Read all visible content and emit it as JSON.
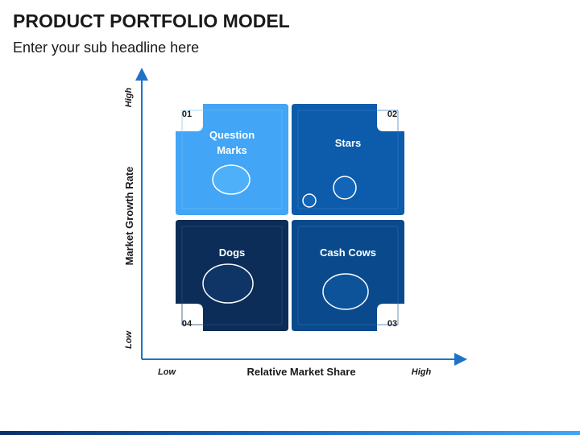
{
  "slide": {
    "title": "PRODUCT PORTFOLIO MODEL",
    "subtitle": "Enter your sub headline here"
  },
  "axes": {
    "y_label": "Market Growth Rate",
    "y_high": "High",
    "y_low": "Low",
    "x_label": "Relative Market Share",
    "x_low": "Low",
    "x_high": "High"
  },
  "quadrants": [
    {
      "number": "01",
      "label_line1": "Question",
      "label_line2": "Marks",
      "color": "#42a5f5"
    },
    {
      "number": "02",
      "label_line1": "Stars",
      "label_line2": "",
      "color": "#0d5bab"
    },
    {
      "number": "03",
      "label_line1": "Cash Cows",
      "label_line2": "",
      "color": "#0a4a8c"
    },
    {
      "number": "04",
      "label_line1": "Dogs",
      "label_line2": "",
      "color": "#0b2d57"
    }
  ],
  "colors": {
    "axis": "#1e73c8",
    "text_dark": "#1a1a1a",
    "text_light": "#ffffff"
  }
}
